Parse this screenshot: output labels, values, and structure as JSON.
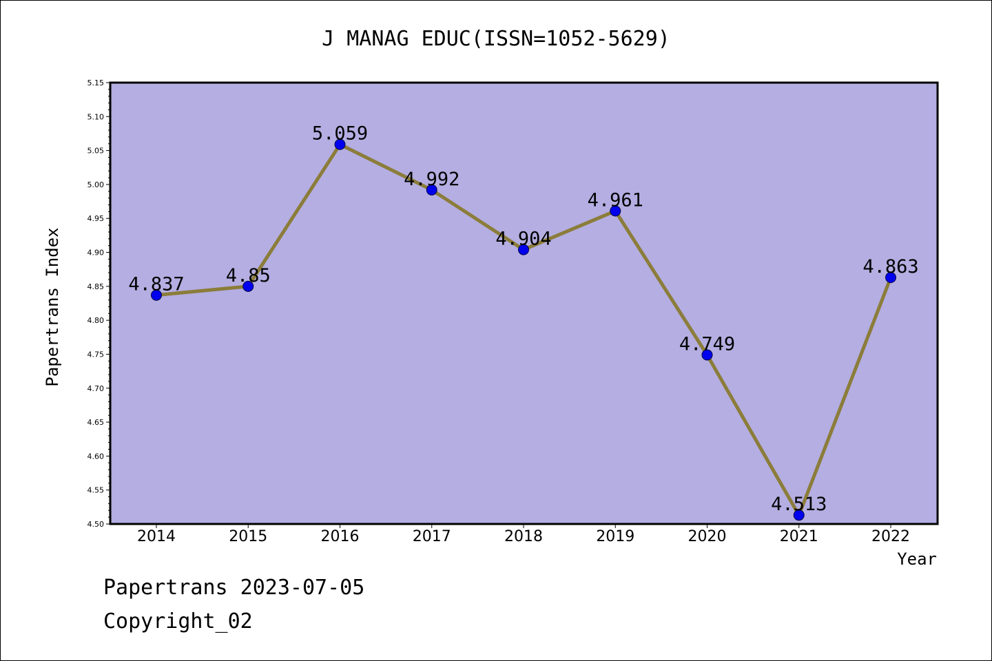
{
  "chart_data": {
    "type": "line",
    "title": "J MANAG EDUC(ISSN=1052-5629)",
    "xlabel": "Year",
    "ylabel": "Papertrans Index",
    "categories": [
      "2014",
      "2015",
      "2016",
      "2017",
      "2018",
      "2019",
      "2020",
      "2021",
      "2022"
    ],
    "values": [
      4.837,
      4.85,
      5.059,
      4.992,
      4.904,
      4.961,
      4.749,
      4.513,
      4.863
    ],
    "data_labels": [
      "4.837",
      "4.85",
      "5.059",
      "4.992",
      "4.904",
      "4.961",
      "4.749",
      "4.513",
      "4.863"
    ],
    "ylim": [
      4.5,
      5.15
    ],
    "yticks": [
      "4.50",
      "4.55",
      "4.60",
      "4.65",
      "4.70",
      "4.75",
      "4.80",
      "4.85",
      "4.90",
      "4.95",
      "5.00",
      "5.05",
      "5.10",
      "5.15"
    ],
    "grid": false,
    "legend": "none",
    "colors": {
      "plot_background": "#b4aee2",
      "line": "#8b7d3a",
      "marker": "#0000ee"
    }
  },
  "footer": {
    "line1": "Papertrans 2023-07-05",
    "line2": "Copyright_02"
  }
}
